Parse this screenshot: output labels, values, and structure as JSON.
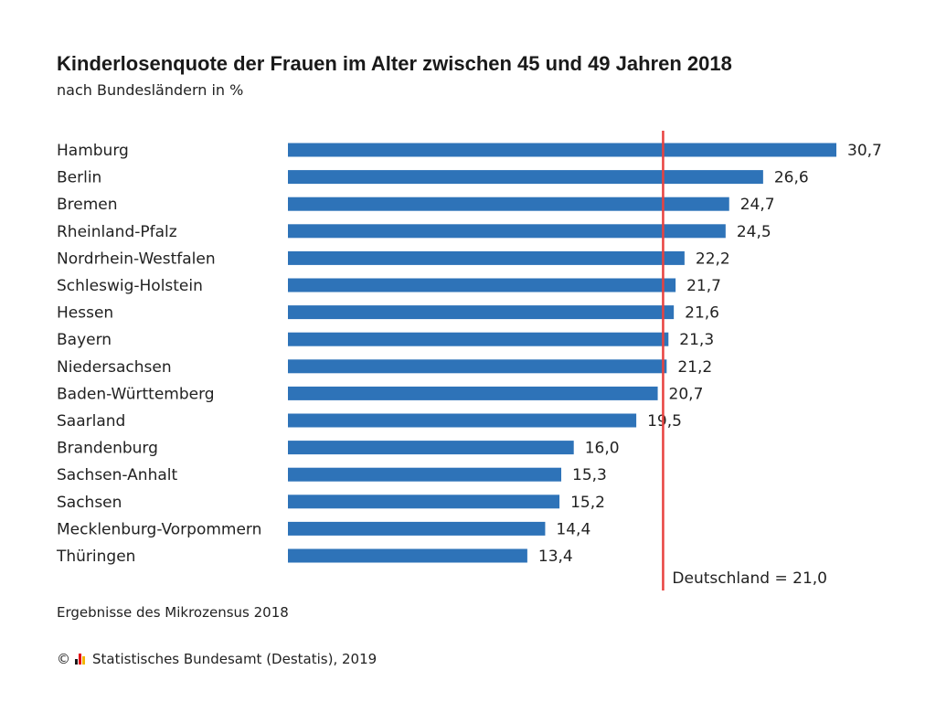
{
  "title": "Kinderlosenquote der Frauen im Alter zwischen 45 und 49 Jahren 2018",
  "subtitle": "nach Bundesländern in %",
  "note": "Ergebnisse des Mikrozensus 2018",
  "footer": {
    "copyright": "©",
    "source": "Statistisches Bundesamt (Destatis), 2019"
  },
  "colors": {
    "bar": "#2e73b8",
    "reference": "#e8423f",
    "logo": [
      "#1a1a1a",
      "#e30613",
      "#f2b500"
    ]
  },
  "chart_data": {
    "type": "bar",
    "orientation": "horizontal",
    "categories": [
      "Hamburg",
      "Berlin",
      "Bremen",
      "Rheinland-Pfalz",
      "Nordrhein-Westfalen",
      "Schleswig-Holstein",
      "Hessen",
      "Bayern",
      "Niedersachsen",
      "Baden-Württemberg",
      "Saarland",
      "Brandenburg",
      "Sachsen-Anhalt",
      "Sachsen",
      "Mecklenburg-Vorpommern",
      "Thüringen"
    ],
    "values": [
      30.7,
      26.6,
      24.7,
      24.5,
      22.2,
      21.7,
      21.6,
      21.3,
      21.2,
      20.7,
      19.5,
      16.0,
      15.3,
      15.2,
      14.4,
      13.4
    ],
    "value_labels": [
      "30,7",
      "26,6",
      "24,7",
      "24,5",
      "22,2",
      "21,7",
      "21,6",
      "21,3",
      "21,2",
      "20,7",
      "19,5",
      "16,0",
      "15,3",
      "15,2",
      "14,4",
      "13,4"
    ],
    "reference_line": {
      "value": 21.0,
      "label": "Deutschland = 21,0"
    },
    "xlim": [
      0,
      30.7
    ],
    "grid": false,
    "axes_visible": false
  }
}
